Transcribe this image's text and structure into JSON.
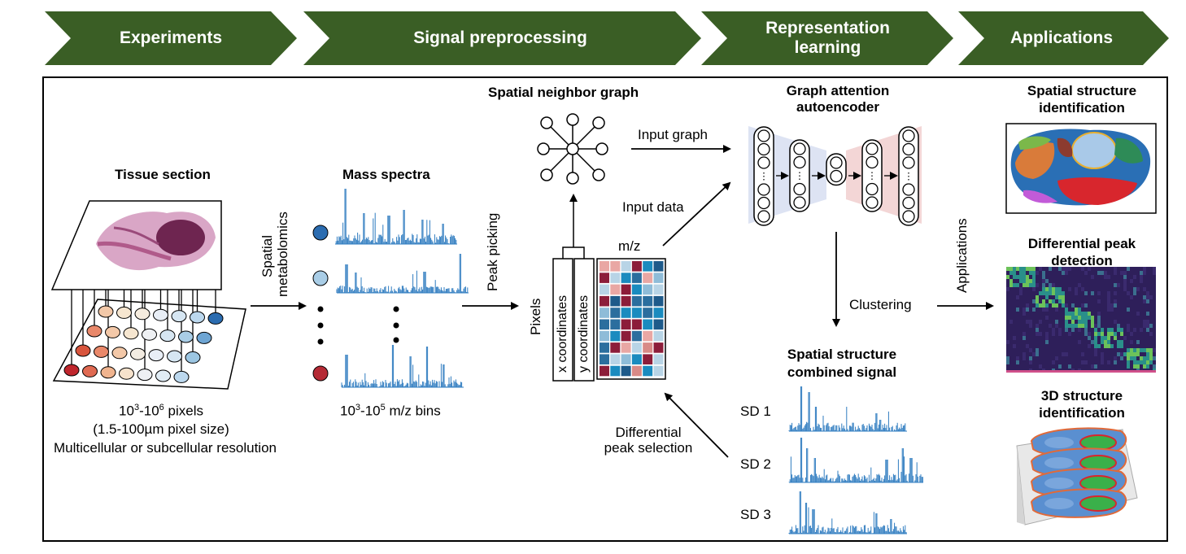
{
  "stages": [
    {
      "label": "Experiments"
    },
    {
      "label": "Signal preprocessing"
    },
    {
      "label": "Representation learning"
    },
    {
      "label": "Applications"
    }
  ],
  "experiments": {
    "tissue_title": "Tissue section",
    "pixels_line1_base": "10",
    "pixels_line1_sup1": "3",
    "pixels_line1_mid": "-10",
    "pixels_line1_sup2": "6",
    "pixels_line1_tail": " pixels",
    "pixels_line2": "(1.5-100µm pixel size)",
    "pixels_line3": "Multicellular or subcellular resolution",
    "arrow_label_1": "Spatial",
    "arrow_label_2": "metabolomics"
  },
  "spectra": {
    "title": "Mass spectra",
    "bins_base": "10",
    "bins_sup1": "3",
    "bins_mid": "-10",
    "bins_sup2": "5",
    "bins_tail": " m/z bins",
    "dot_colors": [
      "#2b6cb0",
      "#a9cde6",
      "#b52a35"
    ],
    "peak_picking": "Peak picking"
  },
  "matrix": {
    "graph_title": "Spatial neighbor graph",
    "mz_label": "m/z",
    "pixels_label": "Pixels",
    "x_coord": "x coordinates",
    "y_coord": "y coordinates",
    "input_graph": "Input graph",
    "input_data": "Input data",
    "differential_1": "Differential",
    "differential_2": "peak selection",
    "cell_colors": [
      "#d88a87",
      "#1a8bbf",
      "#8fbcd8",
      "#b8d4e6",
      "#1e5a8a",
      "#2b6e9e",
      "#8c1d3a",
      "#e9a7a4"
    ]
  },
  "autoencoder": {
    "title_1": "Graph attention",
    "title_2": "autoencoder",
    "clustering": "Clustering"
  },
  "combined": {
    "title_1": "Spatial structure",
    "title_2": "combined signal",
    "sd": [
      "SD 1",
      "SD 2",
      "SD 3"
    ]
  },
  "applications": {
    "arrow_label": "Applications",
    "app1_1": "Spatial structure",
    "app1_2": "identification",
    "app2_1": "Differential peak",
    "app2_2": "detection",
    "app3_1": "3D structure",
    "app3_2": "identification"
  },
  "colors": {
    "stage_green": "#3a5e25",
    "spectrum_blue": "#2f7cc0",
    "encoder_fill": "#dde3f3",
    "decoder_fill": "#f3d6d6"
  }
}
